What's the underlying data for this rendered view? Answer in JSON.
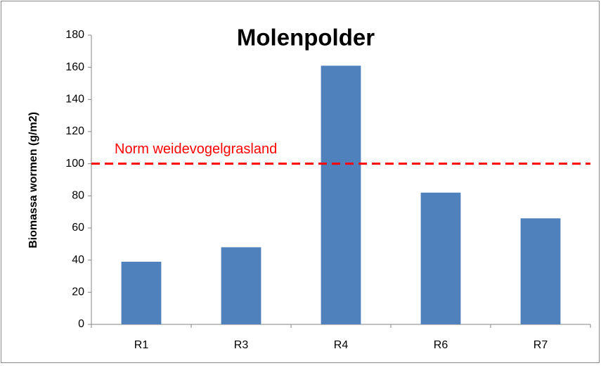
{
  "chart_data": {
    "type": "bar",
    "title": "Molenpolder",
    "y_label": "Biomassa  wormen (g/m2)",
    "categories": [
      "R1",
      "R3",
      "R4",
      "R6",
      "R7"
    ],
    "values": [
      39,
      48,
      161,
      82,
      66
    ],
    "color": "#4f81bd",
    "ylim": [
      0,
      180
    ],
    "yticks": [
      0,
      20,
      40,
      60,
      80,
      100,
      120,
      140,
      160,
      180
    ],
    "grid": false,
    "reference_line": {
      "value": 100,
      "label": "Norm weidevogelgrasland",
      "color": "#ff0000"
    }
  }
}
